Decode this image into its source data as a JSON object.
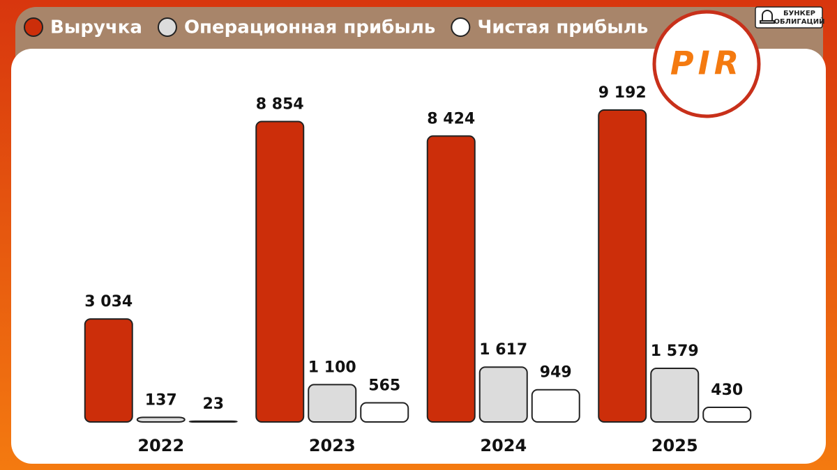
{
  "chart_data": {
    "type": "bar",
    "categories": [
      "2022",
      "2023",
      "2024",
      "2025"
    ],
    "series": [
      {
        "name": "Выручка",
        "color": "#cc2e0a",
        "values": [
          3034,
          8854,
          8424,
          9192
        ],
        "value_labels": [
          "3 034",
          "8 854",
          "8 424",
          "9 192"
        ]
      },
      {
        "name": "Операционная прибыль",
        "color": "#dcdcdc",
        "values": [
          137,
          1100,
          1617,
          1579
        ],
        "value_labels": [
          "137",
          "1 100",
          "1 617",
          "1 579"
        ]
      },
      {
        "name": "Чистая прибыль",
        "color": "#ffffff",
        "values": [
          23,
          565,
          949,
          430
        ],
        "value_labels": [
          "23",
          "565",
          "949",
          "430"
        ]
      }
    ]
  },
  "brand": {
    "line1": "БУНКЕР",
    "line2": "ОБЛИГАЦИЙ"
  },
  "logo": "PIR"
}
